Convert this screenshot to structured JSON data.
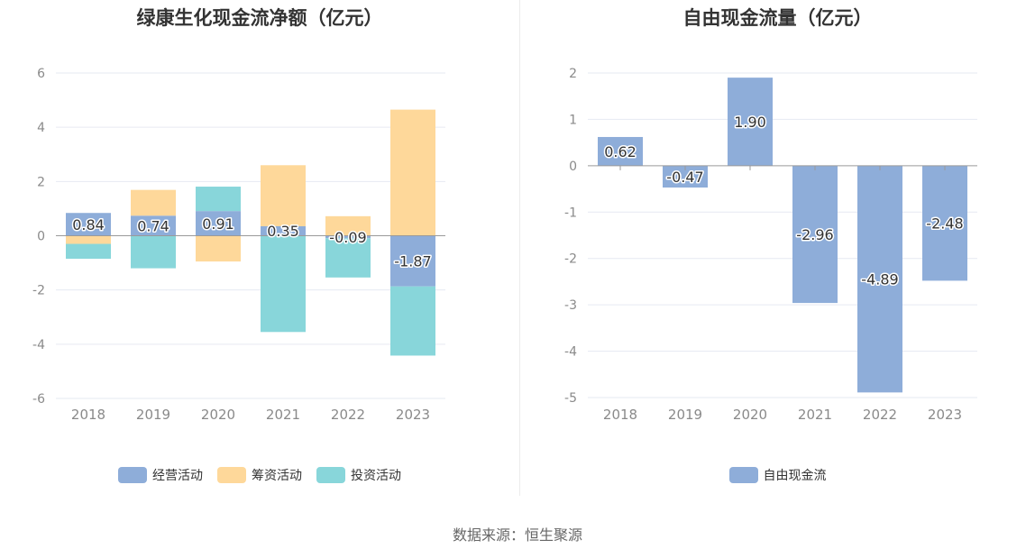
{
  "source": "数据来源：恒生聚源",
  "chart_data": [
    {
      "type": "bar",
      "stacked": true,
      "title": "绿康生化现金流净额（亿元）",
      "categories": [
        "2018",
        "2019",
        "2020",
        "2021",
        "2022",
        "2023"
      ],
      "ylim": [
        -6,
        6
      ],
      "yticks": [
        6,
        4,
        2,
        0,
        -2,
        -4,
        -6
      ],
      "grid": true,
      "legend_position": "bottom-center",
      "series": [
        {
          "name": "经营活动",
          "color": "#8eadd9",
          "values": [
            0.84,
            0.74,
            0.91,
            0.35,
            -0.09,
            -1.87
          ],
          "labeled": true
        },
        {
          "name": "筹资活动",
          "color": "#fed89a",
          "values": [
            -0.3,
            0.95,
            -0.95,
            2.25,
            0.72,
            4.65
          ],
          "labeled": false
        },
        {
          "name": "投资活动",
          "color": "#88d6da",
          "values": [
            -0.55,
            -1.2,
            0.9,
            -3.55,
            -1.45,
            -2.55
          ],
          "labeled": false
        }
      ]
    },
    {
      "type": "bar",
      "title": "自由现金流量（亿元）",
      "categories": [
        "2018",
        "2019",
        "2020",
        "2021",
        "2022",
        "2023"
      ],
      "ylim": [
        -5,
        2
      ],
      "yticks": [
        2,
        1,
        0,
        -1,
        -2,
        -3,
        -4,
        -5
      ],
      "grid": true,
      "legend_position": "bottom-center",
      "series": [
        {
          "name": "自由现金流",
          "color": "#8eadd9",
          "values": [
            0.62,
            -0.47,
            1.9,
            -2.96,
            -4.89,
            -2.48
          ],
          "labeled": true
        }
      ]
    }
  ]
}
